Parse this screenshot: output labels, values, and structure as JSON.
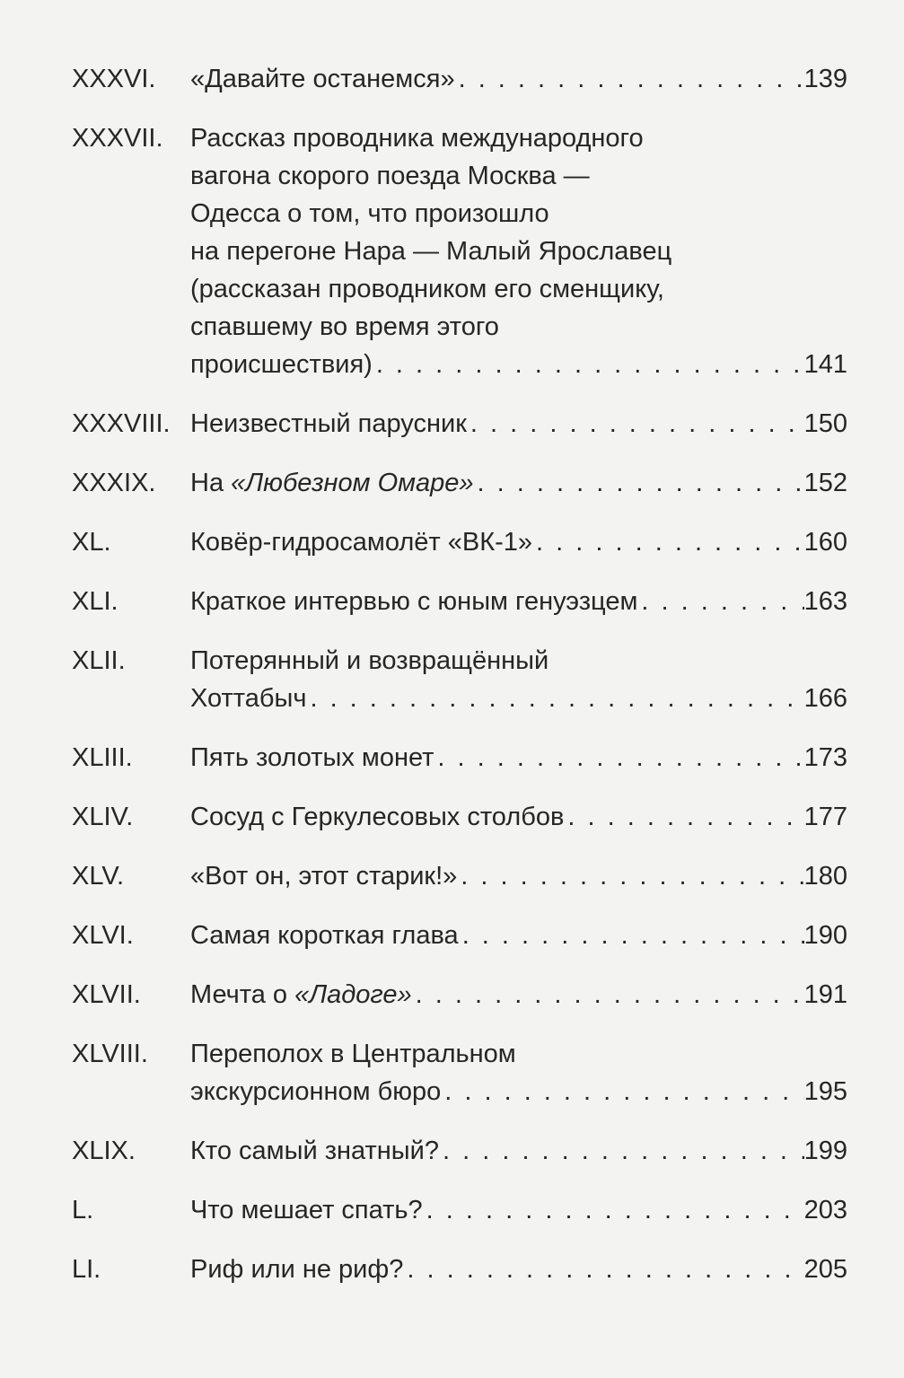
{
  "toc": [
    {
      "num": "XXXVI.",
      "lines": [
        [
          {
            "t": "«Давайте останемся»"
          }
        ]
      ],
      "page": "139"
    },
    {
      "num": "XXXVII.",
      "lines": [
        [
          {
            "t": "Рассказ проводника международного"
          }
        ],
        [
          {
            "t": "вагона скорого поезда Москва —"
          }
        ],
        [
          {
            "t": "Одесса о том, что произошло"
          }
        ],
        [
          {
            "t": "на перегоне Нара — Малый Ярославец"
          }
        ],
        [
          {
            "t": "(рассказан проводником его сменщику,"
          }
        ],
        [
          {
            "t": "спавшему во время этого"
          }
        ],
        [
          {
            "t": "происшествия)"
          }
        ]
      ],
      "page": "141"
    },
    {
      "num": "XXXVIII.",
      "lines": [
        [
          {
            "t": "Неизвестный парусник"
          }
        ]
      ],
      "page": "150"
    },
    {
      "num": "XXXIX.",
      "lines": [
        [
          {
            "t": "На "
          },
          {
            "t": "«Любезном Омаре»",
            "i": true
          }
        ]
      ],
      "page": "152"
    },
    {
      "num": "XL.",
      "lines": [
        [
          {
            "t": "Ковёр-гидросамолёт «ВК-1»"
          }
        ]
      ],
      "page": "160"
    },
    {
      "num": "XLI.",
      "lines": [
        [
          {
            "t": "Краткое интервью с юным генуэзцем"
          }
        ]
      ],
      "page": "163"
    },
    {
      "num": "XLII.",
      "lines": [
        [
          {
            "t": "Потерянный и возвращённый"
          }
        ],
        [
          {
            "t": "Хоттабыч"
          }
        ]
      ],
      "page": "166"
    },
    {
      "num": "XLIII.",
      "lines": [
        [
          {
            "t": "Пять золотых монет"
          }
        ]
      ],
      "page": "173"
    },
    {
      "num": "XLIV.",
      "lines": [
        [
          {
            "t": "Сосуд с Геркулесовых столбов"
          }
        ]
      ],
      "page": "177"
    },
    {
      "num": "XLV.",
      "lines": [
        [
          {
            "t": "«Вот он, этот старик!»"
          }
        ]
      ],
      "page": "180"
    },
    {
      "num": "XLVI.",
      "lines": [
        [
          {
            "t": "Самая короткая глава"
          }
        ]
      ],
      "page": "190"
    },
    {
      "num": "XLVII.",
      "lines": [
        [
          {
            "t": "Мечта о "
          },
          {
            "t": "«Ладоге»",
            "i": true
          }
        ]
      ],
      "page": "191"
    },
    {
      "num": "XLVIII.",
      "lines": [
        [
          {
            "t": "Переполох в Центральном"
          }
        ],
        [
          {
            "t": "экскурсионном бюро"
          }
        ]
      ],
      "page": "195"
    },
    {
      "num": "XLIX.",
      "lines": [
        [
          {
            "t": "Кто самый знатный?"
          }
        ]
      ],
      "page": "199"
    },
    {
      "num": "L.",
      "lines": [
        [
          {
            "t": "Что мешает спать?"
          }
        ]
      ],
      "page": "203"
    },
    {
      "num": "LI.",
      "lines": [
        [
          {
            "t": "Риф или не риф?"
          }
        ]
      ],
      "page": "205"
    }
  ]
}
